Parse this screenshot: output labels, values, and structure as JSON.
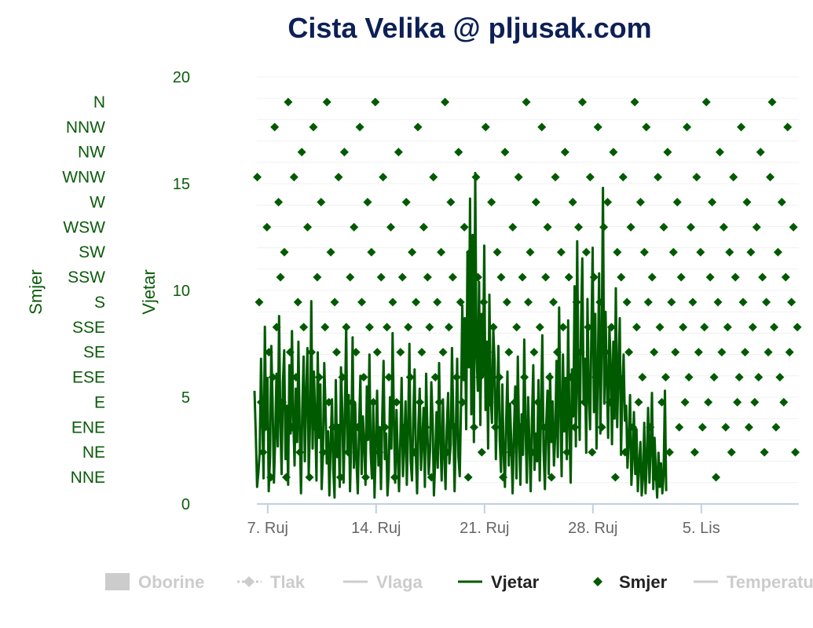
{
  "chart_data": {
    "type": "line",
    "title": "Cista Velika @ pljusak.com",
    "colors": {
      "title": "#0d2056",
      "wind": "#005a00",
      "label_green": "#0b5c0b",
      "x_tick": "#666666",
      "grid": "#f0f0f0",
      "axis": "#c0d0e0",
      "legend_hidden": "#cccccc"
    },
    "y_axis_wind": {
      "title": "Vjetar",
      "min": 0,
      "max": 20,
      "ticks": [
        "0",
        "5",
        "10",
        "15",
        "20"
      ]
    },
    "y_axis_direction": {
      "title": "Smjer",
      "categories": [
        "NNE",
        "NE",
        "ENE",
        "E",
        "ESE",
        "SE",
        "SSE",
        "S",
        "SSW",
        "SW",
        "WSW",
        "W",
        "WNW",
        "NW",
        "NNW",
        "N"
      ]
    },
    "x_axis": {
      "start_day": 6.3,
      "end_day": 41.3,
      "ticks": [
        {
          "day": 7,
          "label": "7. Ruj"
        },
        {
          "day": 14,
          "label": "14. Ruj"
        },
        {
          "day": 21,
          "label": "21. Ruj"
        },
        {
          "day": 28,
          "label": "28. Ruj"
        },
        {
          "day": 35,
          "label": "5. Lis"
        }
      ]
    },
    "series": [
      {
        "name": "Vjetar",
        "type": "line",
        "start_day": 6.15,
        "step_hours": 2,
        "values": [
          5.3,
          3.2,
          0.8,
          1.5,
          2.4,
          6.8,
          4.1,
          1.2,
          8.3,
          3.5,
          5.9,
          0.6,
          2.2,
          7.4,
          4.8,
          1.0,
          3.0,
          6.1,
          2.7,
          8.8,
          3.9,
          1.4,
          5.7,
          7.2,
          2.1,
          4.6,
          0.9,
          6.5,
          3.3,
          8.1,
          4.2,
          1.8,
          5.4,
          2.9,
          7.6,
          3.6,
          0.5,
          4.4,
          6.9,
          2.0,
          5.2,
          7.3,
          1.3,
          3.8,
          9.5,
          2.6,
          6.2,
          4.0,
          1.1,
          7.1,
          3.1,
          5.6,
          0.7,
          2.3,
          6.6,
          4.5,
          1.9,
          3.4,
          0.4,
          2.8,
          4.9,
          1.6,
          0.3,
          5.8,
          2.2,
          3.7,
          0.8,
          6.4,
          4.3,
          1.0,
          3.9,
          8.4,
          2.5,
          5.1,
          0.6,
          3.2,
          7.8,
          1.7,
          4.7,
          2.0,
          0.5,
          3.5,
          6.0,
          1.4,
          4.1,
          2.8,
          0.9,
          5.5,
          3.0,
          7.0,
          2.4,
          1.2,
          4.6,
          0.3,
          2.9,
          5.3,
          1.8,
          3.6,
          0.7,
          4.2,
          6.7,
          2.1,
          3.3,
          0.4,
          1.5,
          5.0,
          2.6,
          8.0,
          3.8,
          1.0,
          4.4,
          2.2,
          0.6,
          3.1,
          5.9,
          1.3,
          2.7,
          4.8,
          0.9,
          3.4,
          7.5,
          2.0,
          1.1,
          4.0,
          6.3,
          2.3,
          0.5,
          3.7,
          5.4,
          1.6,
          2.9,
          4.5,
          0.8,
          6.1,
          3.2,
          1.4,
          2.5,
          5.7,
          3.9,
          0.4,
          2.0,
          4.3,
          1.7,
          6.6,
          3.0,
          1.1,
          4.9,
          2.4,
          0.7,
          3.6,
          5.2,
          1.9,
          2.8,
          7.3,
          4.1,
          0.6,
          3.3,
          6.8,
          2.2,
          1.3,
          4.6,
          9.3,
          5.8,
          8.7,
          3.5,
          11.8,
          6.4,
          14.3,
          4.2,
          12.6,
          2.9,
          15.5,
          7.1,
          5.3,
          10.4,
          3.7,
          8.9,
          6.0,
          12.1,
          4.4,
          7.6,
          2.6,
          9.8,
          5.1,
          3.8,
          8.2,
          6.7,
          2.1,
          4.9,
          7.4,
          3.0,
          1.5,
          5.6,
          2.4,
          0.8,
          3.9,
          6.2,
          1.8,
          4.7,
          2.7,
          0.5,
          3.4,
          5.5,
          1.2,
          6.9,
          3.1,
          0.9,
          4.2,
          2.3,
          7.7,
          3.6,
          1.0,
          5.0,
          2.8,
          0.6,
          4.0,
          6.5,
          1.6,
          3.3,
          2.0,
          5.8,
          1.1,
          4.4,
          7.9,
          2.5,
          0.7,
          3.7,
          5.3,
          1.4,
          6.1,
          2.9,
          4.8,
          1.8,
          3.2,
          6.7,
          2.2,
          9.2,
          4.5,
          1.3,
          7.0,
          3.4,
          5.9,
          2.1,
          8.6,
          3.8,
          1.0,
          6.3,
          4.1,
          10.2,
          2.7,
          12.3,
          5.5,
          3.0,
          8.4,
          11.5,
          4.9,
          6.8,
          2.4,
          9.6,
          5.2,
          3.5,
          7.8,
          12.0,
          4.3,
          8.9,
          2.6,
          6.0,
          10.8,
          3.3,
          7.3,
          14.8,
          4.7,
          9.0,
          5.8,
          3.1,
          8.3,
          6.5,
          2.8,
          7.6,
          4.0,
          10.1,
          3.6,
          6.2,
          8.7,
          2.3,
          5.4,
          7.0,
          3.9,
          4.6,
          1.7,
          3.0,
          5.1,
          0.9,
          2.2,
          4.3,
          1.4,
          3.5,
          0.6,
          1.8,
          2.9,
          0.4,
          1.2,
          3.8,
          0.5,
          2.1,
          4.5,
          1.0,
          2.6,
          5.2,
          0.7,
          3.1,
          1.5,
          0.3,
          2.4,
          0.8,
          1.9,
          0.5,
          1.3,
          5.3,
          0.6
        ]
      },
      {
        "name": "Smjer",
        "type": "scatter",
        "start_day": 6.2,
        "step_hours": 3,
        "values": [
          13,
          12,
          7,
          3,
          1,
          2,
          10,
          5,
          0,
          4,
          14,
          6,
          11,
          8,
          3,
          9,
          0,
          15,
          5,
          2,
          12,
          4,
          7,
          1,
          13,
          6,
          3,
          10,
          0,
          5,
          14,
          2,
          8,
          4,
          11,
          1,
          6,
          15,
          3,
          9,
          2,
          7,
          5,
          12,
          0,
          4,
          13,
          6,
          1,
          8,
          3,
          10,
          5,
          2,
          14,
          7,
          4,
          0,
          11,
          6,
          9,
          3,
          15,
          5,
          1,
          8,
          12,
          2,
          6,
          4,
          10,
          7,
          0,
          3,
          13,
          5,
          8,
          2,
          11,
          6,
          4,
          9,
          1,
          7,
          14,
          3,
          5,
          10,
          2,
          8,
          6,
          0,
          12,
          4,
          7,
          3,
          9,
          5,
          15,
          1,
          6,
          11,
          8,
          2,
          4,
          13,
          7,
          3,
          10,
          5,
          0,
          9,
          6,
          2,
          12,
          8,
          4,
          1,
          7,
          14,
          5,
          3,
          11,
          6,
          2,
          9,
          4,
          8,
          0,
          13,
          7,
          5,
          1,
          10,
          3,
          6,
          12,
          2,
          8,
          4,
          15,
          7,
          9,
          1,
          5,
          11,
          3,
          6,
          14,
          2,
          8,
          10,
          4,
          0,
          7,
          12,
          5,
          3,
          9,
          6,
          13,
          1,
          8,
          4,
          11,
          2,
          7,
          10,
          5,
          15,
          3,
          9,
          6,
          12,
          1,
          8,
          4,
          14,
          7,
          2,
          10,
          5,
          11,
          3,
          6,
          13,
          0,
          9,
          4,
          8,
          12,
          1,
          7,
          5,
          10,
          2,
          15,
          6,
          3,
          11,
          4,
          9,
          14,
          7,
          2,
          8,
          5,
          0,
          12,
          6,
          3,
          10,
          4,
          13,
          1,
          7,
          9,
          5,
          11,
          2,
          8,
          6,
          3,
          14,
          4,
          10,
          7,
          1,
          12,
          5,
          9,
          2,
          6,
          15,
          3,
          8,
          11,
          4,
          0,
          7,
          13,
          5,
          10,
          2,
          6,
          9,
          1,
          12,
          8,
          3,
          4,
          14,
          7,
          5,
          11,
          2,
          9,
          6,
          3,
          10,
          4,
          13,
          8,
          1,
          7,
          5,
          12,
          15,
          6,
          2,
          9,
          4,
          11,
          3,
          8,
          14,
          5,
          7,
          10,
          1,
          6,
          12,
          2,
          9,
          15
        ]
      }
    ],
    "legend": [
      {
        "name": "Oborine",
        "symbol": "rect",
        "enabled": false
      },
      {
        "name": "Tlak",
        "symbol": "dash-diamond",
        "enabled": false
      },
      {
        "name": "Vlaga",
        "symbol": "line",
        "enabled": false
      },
      {
        "name": "Vjetar",
        "symbol": "line",
        "enabled": true
      },
      {
        "name": "Smjer",
        "symbol": "diamond",
        "enabled": true
      },
      {
        "name": "Temperatura",
        "symbol": "line",
        "enabled": false
      }
    ]
  }
}
